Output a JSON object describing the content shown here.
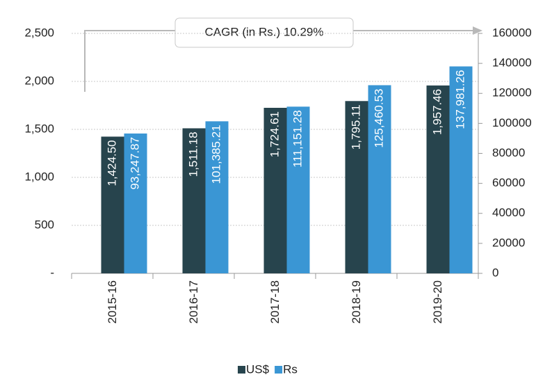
{
  "chart_data": {
    "type": "bar",
    "annotation": "CAGR (in Rs.) 10.29%",
    "categories": [
      "2015-16",
      "2016-17",
      "2017-18",
      "2018-19",
      "2019-20"
    ],
    "series": [
      {
        "name": "US$",
        "color": "#27444d",
        "values": [
          1424.5,
          1511.18,
          1724.61,
          1795.11,
          1957.46
        ],
        "value_labels": [
          "1,424.50",
          "1,511.18",
          "1,724.61",
          "1,795.11",
          "1,957.46"
        ]
      },
      {
        "name": "Rs",
        "color": "#3a96d4",
        "axis": "y2",
        "values": [
          93247.87,
          101385.21,
          111151.28,
          125460.53,
          137981.26
        ],
        "value_labels": [
          "93,247.87",
          "101,385.21",
          "111,151.28",
          "125,460.53",
          "137,981.26"
        ]
      }
    ],
    "ylim": [
      0,
      2500
    ],
    "yticks": [
      {
        "value": 0,
        "label": "-"
      },
      500,
      {
        "value": 1000,
        "label": "1,000"
      },
      {
        "value": 1500,
        "label": "1,500"
      },
      {
        "value": 2000,
        "label": "2,000"
      },
      {
        "value": 2500,
        "label": "2,500"
      }
    ],
    "y2lim": [
      0,
      160000
    ],
    "y2ticks": [
      0,
      20000,
      40000,
      60000,
      80000,
      100000,
      120000,
      140000,
      160000
    ],
    "grid": true,
    "legend": "bottom"
  }
}
